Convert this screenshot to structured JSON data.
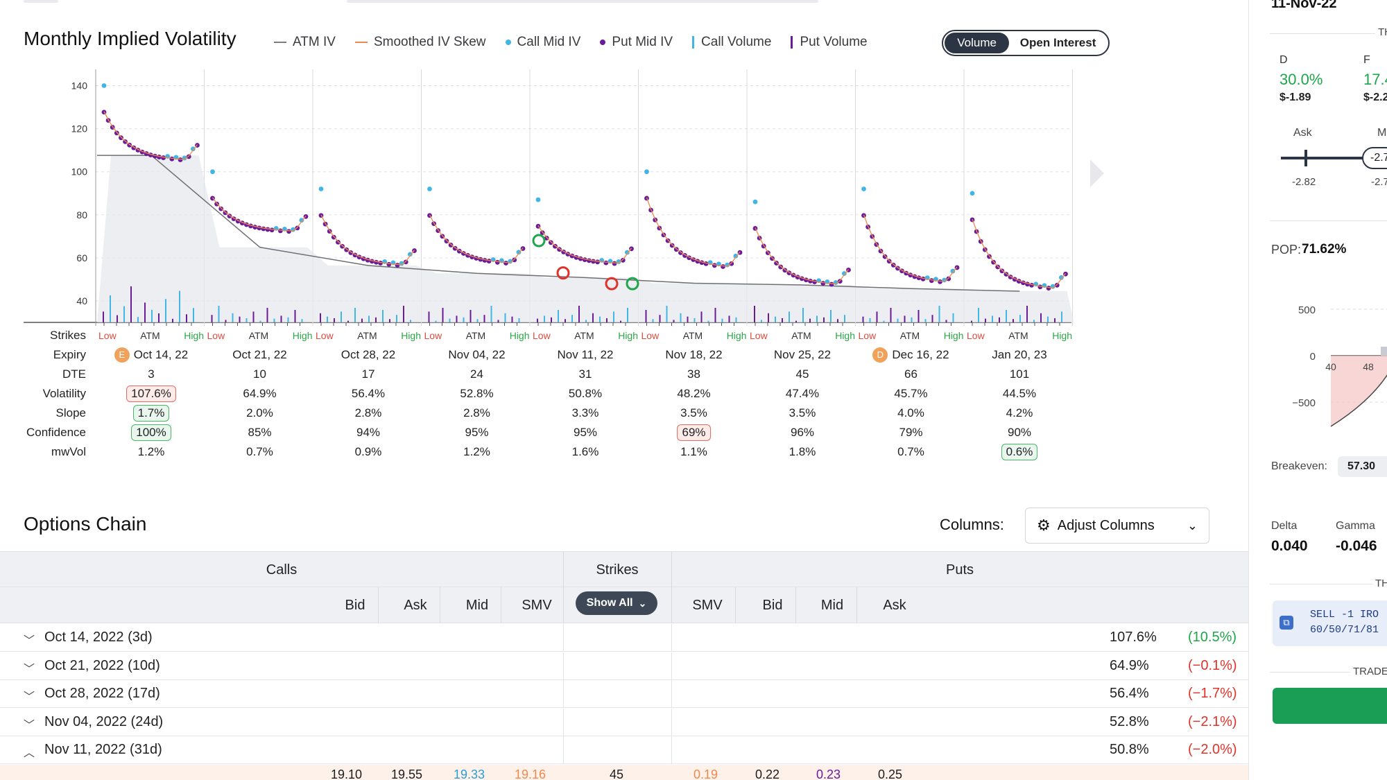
{
  "iv_chart": {
    "title": "Monthly Implied Volatility",
    "legend": [
      {
        "label": "ATM IV",
        "kind": "line",
        "color": "#7b7b80"
      },
      {
        "label": "Smoothed IV Skew",
        "kind": "line",
        "color": "#f08a4b"
      },
      {
        "label": "Call Mid IV",
        "kind": "dot",
        "color": "#41b6e6"
      },
      {
        "label": "Put Mid IV",
        "kind": "dot",
        "color": "#6a1b9a"
      },
      {
        "label": "Call Volume",
        "kind": "bar",
        "color": "#41b6e6"
      },
      {
        "label": "Put Volume",
        "kind": "bar",
        "color": "#6a1b9a"
      }
    ],
    "toggle": {
      "active": "Volume",
      "inactive": "Open Interest"
    },
    "y_ticks": [
      "140",
      "120",
      "100",
      "80",
      "60",
      "40"
    ],
    "row_labels": [
      "Strikes",
      "Expiry",
      "DTE",
      "Volatility",
      "Slope",
      "Confidence",
      "mwVol"
    ],
    "strike_labels": {
      "low": "Low",
      "atm": "ATM",
      "high": "High"
    },
    "expiries": [
      {
        "expiry": "Oct 14, 22",
        "badge": "E",
        "dte": "3",
        "vol": "107.6%",
        "vol_hl": "red",
        "slope": "1.7%",
        "slope_hl": "green",
        "conf": "100%",
        "conf_hl": "green",
        "mwvol": "1.2%",
        "mwvol_hl": ""
      },
      {
        "expiry": "Oct 21, 22",
        "badge": "",
        "dte": "10",
        "vol": "64.9%",
        "vol_hl": "",
        "slope": "2.0%",
        "slope_hl": "",
        "conf": "85%",
        "conf_hl": "",
        "mwvol": "0.7%",
        "mwvol_hl": ""
      },
      {
        "expiry": "Oct 28, 22",
        "badge": "",
        "dte": "17",
        "vol": "56.4%",
        "vol_hl": "",
        "slope": "2.8%",
        "slope_hl": "",
        "conf": "94%",
        "conf_hl": "",
        "mwvol": "0.9%",
        "mwvol_hl": ""
      },
      {
        "expiry": "Nov 04, 22",
        "badge": "",
        "dte": "24",
        "vol": "52.8%",
        "vol_hl": "",
        "slope": "2.8%",
        "slope_hl": "",
        "conf": "95%",
        "conf_hl": "",
        "mwvol": "1.2%",
        "mwvol_hl": ""
      },
      {
        "expiry": "Nov 11, 22",
        "badge": "",
        "dte": "31",
        "vol": "50.8%",
        "vol_hl": "",
        "slope": "3.3%",
        "slope_hl": "",
        "conf": "95%",
        "conf_hl": "",
        "mwvol": "1.6%",
        "mwvol_hl": ""
      },
      {
        "expiry": "Nov 18, 22",
        "badge": "",
        "dte": "38",
        "vol": "48.2%",
        "vol_hl": "",
        "slope": "3.5%",
        "slope_hl": "",
        "conf": "69%",
        "conf_hl": "red",
        "mwvol": "1.1%",
        "mwvol_hl": ""
      },
      {
        "expiry": "Nov 25, 22",
        "badge": "",
        "dte": "45",
        "vol": "47.4%",
        "vol_hl": "",
        "slope": "3.5%",
        "slope_hl": "",
        "conf": "96%",
        "conf_hl": "",
        "mwvol": "1.8%",
        "mwvol_hl": ""
      },
      {
        "expiry": "Dec 16, 22",
        "badge": "D",
        "dte": "66",
        "vol": "45.7%",
        "vol_hl": "",
        "slope": "4.0%",
        "slope_hl": "",
        "conf": "79%",
        "conf_hl": "",
        "mwvol": "0.7%",
        "mwvol_hl": ""
      },
      {
        "expiry": "Jan 20, 23",
        "badge": "",
        "dte": "101",
        "vol": "44.5%",
        "vol_hl": "",
        "slope": "4.2%",
        "slope_hl": "",
        "conf": "90%",
        "conf_hl": "",
        "mwvol": "0.6%",
        "mwvol_hl": "green"
      }
    ]
  },
  "chart_data": {
    "type": "scatter",
    "title": "Monthly Implied Volatility",
    "ylim": [
      30,
      145
    ],
    "categories": [
      "Oct 14, 22",
      "Oct 21, 22",
      "Oct 28, 22",
      "Nov 04, 22",
      "Nov 11, 22",
      "Nov 18, 22",
      "Nov 25, 22",
      "Dec 16, 22",
      "Jan 20, 23"
    ],
    "atm_iv": [
      107.6,
      64.9,
      56.4,
      52.8,
      50.8,
      48.2,
      47.4,
      45.7,
      44.5
    ],
    "skew_start": [
      128,
      88,
      80,
      80,
      75,
      88,
      74,
      80,
      78
    ],
    "skew_end": [
      105,
      72,
      56,
      57,
      57,
      55,
      47,
      48,
      45
    ],
    "series": [
      {
        "name": "ATM IV",
        "values": [
          107.6,
          64.9,
          56.4,
          52.8,
          50.8,
          48.2,
          47.4,
          45.7,
          44.5
        ]
      }
    ]
  },
  "options_chain": {
    "title": "Options Chain",
    "columns_label": "Columns:",
    "adjust_label": "Adjust Columns",
    "calls_label": "Calls",
    "strikes_label": "Strikes",
    "puts_label": "Puts",
    "show_all": "Show All",
    "call_cols": [
      "Bid",
      "Ask",
      "Mid",
      "SMV"
    ],
    "put_cols": [
      "SMV",
      "Bid",
      "Mid",
      "Ask"
    ],
    "rows": [
      {
        "date": "Oct 14, 2022 (3d)",
        "iv": "107.6%",
        "chg": "(10.5%)",
        "dir": "up",
        "expanded": false
      },
      {
        "date": "Oct 21, 2022 (10d)",
        "iv": "64.9%",
        "chg": "(−0.1%)",
        "dir": "down",
        "expanded": false
      },
      {
        "date": "Oct 28, 2022 (17d)",
        "iv": "56.4%",
        "chg": "(−1.7%)",
        "dir": "down",
        "expanded": false
      },
      {
        "date": "Nov 04, 2022 (24d)",
        "iv": "52.8%",
        "chg": "(−2.1%)",
        "dir": "down",
        "expanded": false
      },
      {
        "date": "Nov 11, 2022 (31d)",
        "iv": "50.8%",
        "chg": "(−2.0%)",
        "dir": "down",
        "expanded": true
      }
    ],
    "strike_row": {
      "call_bid": "19.10",
      "call_ask": "19.55",
      "call_mid": "19.33",
      "call_smv": "19.16",
      "strike": "45",
      "put_smv": "0.19",
      "put_bid": "0.22",
      "put_mid": "0.23",
      "put_ask": "0.25"
    }
  },
  "right_panel": {
    "header_frag": "11-Nov-22",
    "th_frag": "TH",
    "col_d_label": "D",
    "col_d_pct": "30.0%",
    "col_d_price": "$-1.89",
    "col_f_label": "F",
    "col_f_pct": "17.4",
    "col_f_price": "$-2.2",
    "ask_label": "Ask",
    "mid_frag": "Mi",
    "ask_value": "-2.82",
    "mid_value_frag": "-2.7",
    "slider_value_frag": "-2.7",
    "pop_label": "POP:",
    "pop_value": "71.62%",
    "pnl_ticks": [
      "500",
      "0",
      "−500"
    ],
    "pnl_x_ticks": [
      "40",
      "48"
    ],
    "breakeven_label": "Breakeven:",
    "breakeven_value": "57.30",
    "delta_label": "Delta",
    "delta_value": "0.040",
    "gamma_label": "Gamma",
    "gamma_value": "-0.046",
    "order_line1": "SELL -1 IRO",
    "order_line2": "60/50/71/81",
    "trade_label": "TRADE"
  }
}
